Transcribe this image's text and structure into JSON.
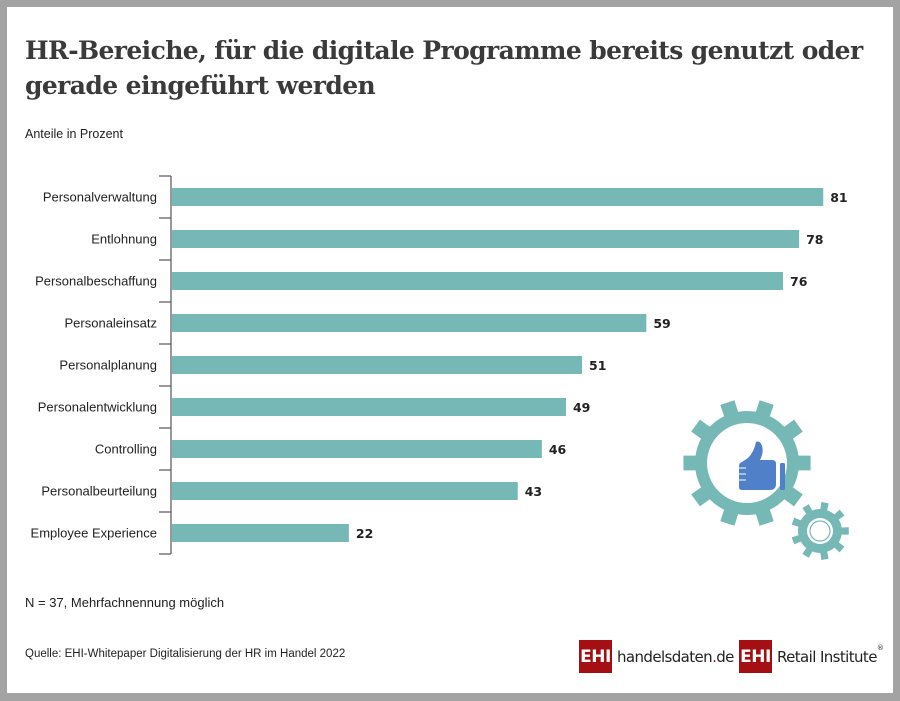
{
  "title": "HR-Bereiche, für die digitale Programme bereits genutzt oder gerade eingeführt werden",
  "subtitle": "Anteile in Prozent",
  "note": "N = 37, Mehrfachnennung möglich",
  "source": "Quelle: EHI-Whitepaper Digitalisierung der HR im Handel 2022",
  "logos": {
    "logo1_box": "EHI",
    "logo1_text_main": "handelsdaten",
    "logo1_text_dot": ".",
    "logo1_text_tld": "de",
    "logo2_box": "EHI",
    "logo2_text": "Retail Institute",
    "logo2_reg": "®"
  },
  "colors": {
    "bar": "#76b8b5",
    "gear": "#76b8b5",
    "thumb": "#5080c8",
    "brand_red": "#a40f14"
  },
  "illustration": {
    "icon": "gears-thumbs-up-icon"
  },
  "chart_data": {
    "type": "bar",
    "orientation": "horizontal",
    "title": "HR-Bereiche, für die digitale Programme bereits genutzt oder gerade eingeführt werden",
    "subtitle": "Anteile in Prozent",
    "xlabel": "",
    "ylabel": "",
    "unit": "%",
    "xlim": [
      0,
      100
    ],
    "grid": false,
    "categories": [
      "Personalverwaltung",
      "Entlohnung",
      "Personalbeschaffung",
      "Personaleinsatz",
      "Personalplanung",
      "Personalentwicklung",
      "Controlling",
      "Personalbeurteilung",
      "Employee Experience"
    ],
    "values": [
      81,
      78,
      76,
      59,
      51,
      49,
      46,
      43,
      22
    ],
    "value_labels": [
      "81",
      "78",
      "76",
      "59",
      "51",
      "49",
      "46",
      "43",
      "22"
    ]
  }
}
